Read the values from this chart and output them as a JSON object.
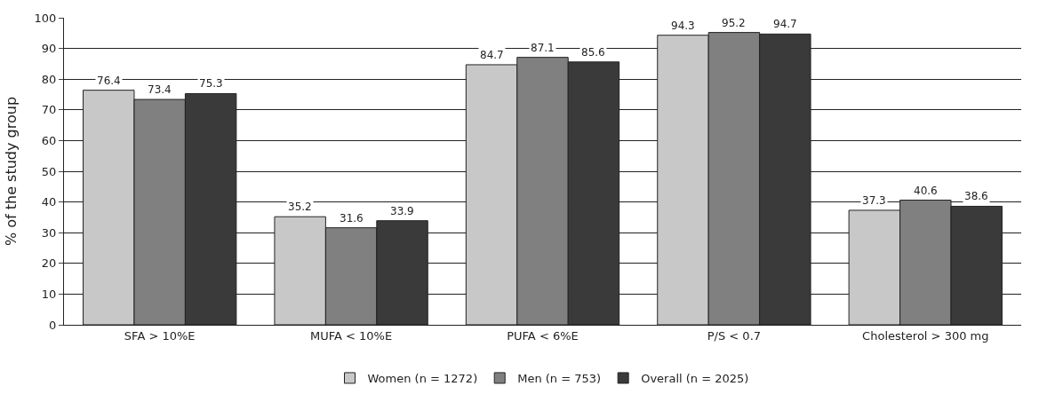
{
  "chart_data": {
    "type": "bar",
    "ylabel": "% of the study group",
    "categories": [
      "SFA > 10%E",
      "MUFA < 10%E",
      "PUFA < 6%E",
      "P/S < 0.7",
      "Cholesterol > 300 mg"
    ],
    "series": [
      {
        "name": "Women (n = 1272)",
        "color": "#c8c8c8",
        "values": [
          76.4,
          35.2,
          84.7,
          94.3,
          37.3
        ]
      },
      {
        "name": "Men (n = 753)",
        "color": "#808080",
        "values": [
          73.4,
          31.6,
          87.1,
          95.2,
          40.6
        ]
      },
      {
        "name": "Overall (n = 2025)",
        "color": "#3a3a3a",
        "values": [
          75.3,
          33.9,
          85.6,
          94.7,
          38.6
        ]
      }
    ],
    "ylim": [
      0,
      100
    ],
    "yticks": [
      0,
      10,
      20,
      30,
      40,
      50,
      60,
      70,
      80,
      90,
      100
    ],
    "grid": "y",
    "legend": "bottom",
    "data_labels": true
  }
}
